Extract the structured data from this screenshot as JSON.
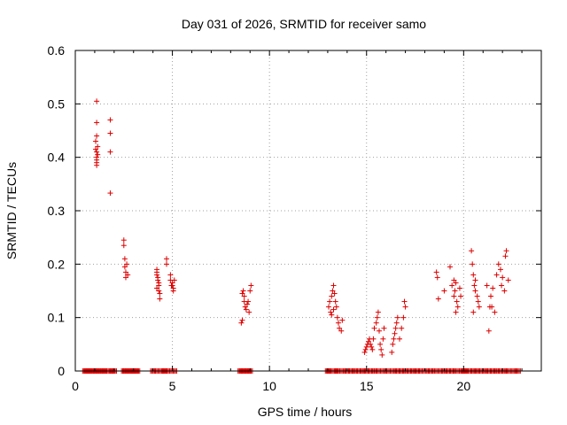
{
  "chart_data": {
    "type": "scatter",
    "title": "Day 031 of 2026, SRMTID for receiver samo",
    "xlabel": "GPS time / hours",
    "ylabel": "SRMTID / TECUs",
    "xlim": [
      0,
      24
    ],
    "ylim": [
      0,
      0.6
    ],
    "xticks": [
      "0",
      "5",
      "10",
      "15",
      "20"
    ],
    "yticks": [
      "0",
      "0.1",
      "0.2",
      "0.3",
      "0.4",
      "0.5",
      "0.6"
    ],
    "grid": true,
    "marker": "+",
    "color": "#dd0000",
    "series": [
      {
        "name": "SRMTID",
        "x": [
          1.1,
          1.1,
          1.1,
          1.05,
          1.05,
          1.1,
          1.15,
          1.1,
          1.1,
          1.1,
          1.15,
          1.1,
          1.8,
          1.8,
          1.8,
          1.8,
          2.5,
          2.5,
          2.55,
          2.55,
          2.6,
          2.6,
          2.7,
          2.65,
          4.2,
          4.2,
          4.25,
          4.25,
          4.3,
          4.3,
          4.3,
          4.35,
          4.35,
          4.2,
          4.2,
          4.7,
          4.7,
          4.9,
          4.9,
          5.0,
          5.0,
          5.05,
          5.05,
          5.1,
          4.95,
          8.6,
          8.65,
          8.7,
          8.7,
          8.75,
          8.8,
          8.85,
          8.9,
          8.95,
          9.0,
          9.05,
          8.55,
          8.6,
          13.05,
          13.1,
          13.15,
          13.2,
          13.25,
          13.3,
          13.35,
          13.4,
          13.45,
          13.5,
          13.55,
          13.6,
          13.7,
          13.75,
          13.2,
          13.3,
          14.9,
          14.95,
          15.0,
          15.05,
          15.1,
          15.15,
          15.2,
          15.25,
          15.3,
          15.35,
          15.4,
          15.5,
          15.55,
          15.6,
          15.65,
          15.7,
          15.75,
          15.8,
          15.85,
          15.9,
          16.3,
          16.35,
          16.4,
          16.45,
          16.5,
          16.55,
          16.6,
          16.7,
          16.8,
          16.9,
          17.0,
          16.95,
          18.6,
          18.65,
          18.7,
          19.0,
          19.3,
          19.4,
          19.5,
          19.55,
          19.6,
          19.65,
          19.7,
          19.8,
          19.85,
          19.5,
          19.6,
          20.4,
          20.45,
          20.5,
          20.55,
          20.6,
          20.7,
          20.75,
          20.8,
          20.5,
          20.6,
          21.2,
          21.3,
          21.35,
          21.4,
          21.5,
          21.6,
          21.7,
          21.8,
          21.9,
          22.0,
          22.1,
          22.15,
          22.2,
          22.3,
          21.95,
          21.45
        ],
        "y": [
          0.505,
          0.465,
          0.44,
          0.43,
          0.415,
          0.41,
          0.405,
          0.4,
          0.39,
          0.385,
          0.42,
          0.395,
          0.47,
          0.445,
          0.41,
          0.333,
          0.245,
          0.235,
          0.21,
          0.195,
          0.185,
          0.175,
          0.18,
          0.2,
          0.19,
          0.185,
          0.175,
          0.17,
          0.165,
          0.16,
          0.15,
          0.145,
          0.135,
          0.18,
          0.155,
          0.21,
          0.2,
          0.18,
          0.17,
          0.165,
          0.16,
          0.155,
          0.15,
          0.17,
          0.16,
          0.145,
          0.15,
          0.14,
          0.13,
          0.12,
          0.115,
          0.125,
          0.13,
          0.11,
          0.15,
          0.16,
          0.09,
          0.095,
          0.12,
          0.13,
          0.11,
          0.14,
          0.15,
          0.16,
          0.145,
          0.13,
          0.12,
          0.1,
          0.09,
          0.08,
          0.075,
          0.095,
          0.105,
          0.115,
          0.035,
          0.04,
          0.045,
          0.05,
          0.055,
          0.06,
          0.05,
          0.045,
          0.04,
          0.06,
          0.08,
          0.09,
          0.1,
          0.11,
          0.075,
          0.05,
          0.04,
          0.03,
          0.06,
          0.08,
          0.035,
          0.05,
          0.06,
          0.07,
          0.08,
          0.09,
          0.1,
          0.06,
          0.08,
          0.1,
          0.12,
          0.13,
          0.185,
          0.175,
          0.135,
          0.15,
          0.195,
          0.16,
          0.14,
          0.15,
          0.165,
          0.13,
          0.12,
          0.155,
          0.14,
          0.17,
          0.11,
          0.225,
          0.2,
          0.18,
          0.16,
          0.15,
          0.14,
          0.13,
          0.12,
          0.11,
          0.17,
          0.16,
          0.075,
          0.12,
          0.14,
          0.155,
          0.11,
          0.18,
          0.2,
          0.19,
          0.175,
          0.15,
          0.215,
          0.225,
          0.17,
          0.16,
          0.12
        ]
      },
      {
        "name": "zero-baseline",
        "x": [
          0.5,
          0.6,
          0.7,
          0.8,
          1.0,
          1.1,
          1.2,
          1.4,
          1.5,
          1.7,
          1.9,
          2.0,
          2.5,
          2.6,
          2.8,
          2.9,
          3.0,
          3.1,
          3.2,
          4.0,
          4.2,
          4.5,
          4.6,
          4.8,
          5.1,
          8.5,
          8.6,
          8.8,
          8.9,
          9.0,
          13.0,
          13.1,
          13.4,
          13.5,
          13.8,
          14.0,
          14.2,
          14.4,
          14.6,
          14.8,
          15.0,
          15.2,
          15.4,
          15.6,
          15.9,
          16.1,
          16.4,
          16.6,
          16.8,
          17.0,
          17.2,
          17.4,
          17.6,
          17.8,
          18.1,
          18.3,
          18.5,
          18.8,
          19.0,
          19.2,
          19.4,
          19.6,
          19.9,
          20.0,
          20.1,
          20.3,
          20.5,
          20.7,
          20.9,
          21.1,
          21.3,
          21.5,
          21.7,
          21.9,
          22.1,
          22.3,
          22.6,
          22.8
        ]
      }
    ]
  }
}
